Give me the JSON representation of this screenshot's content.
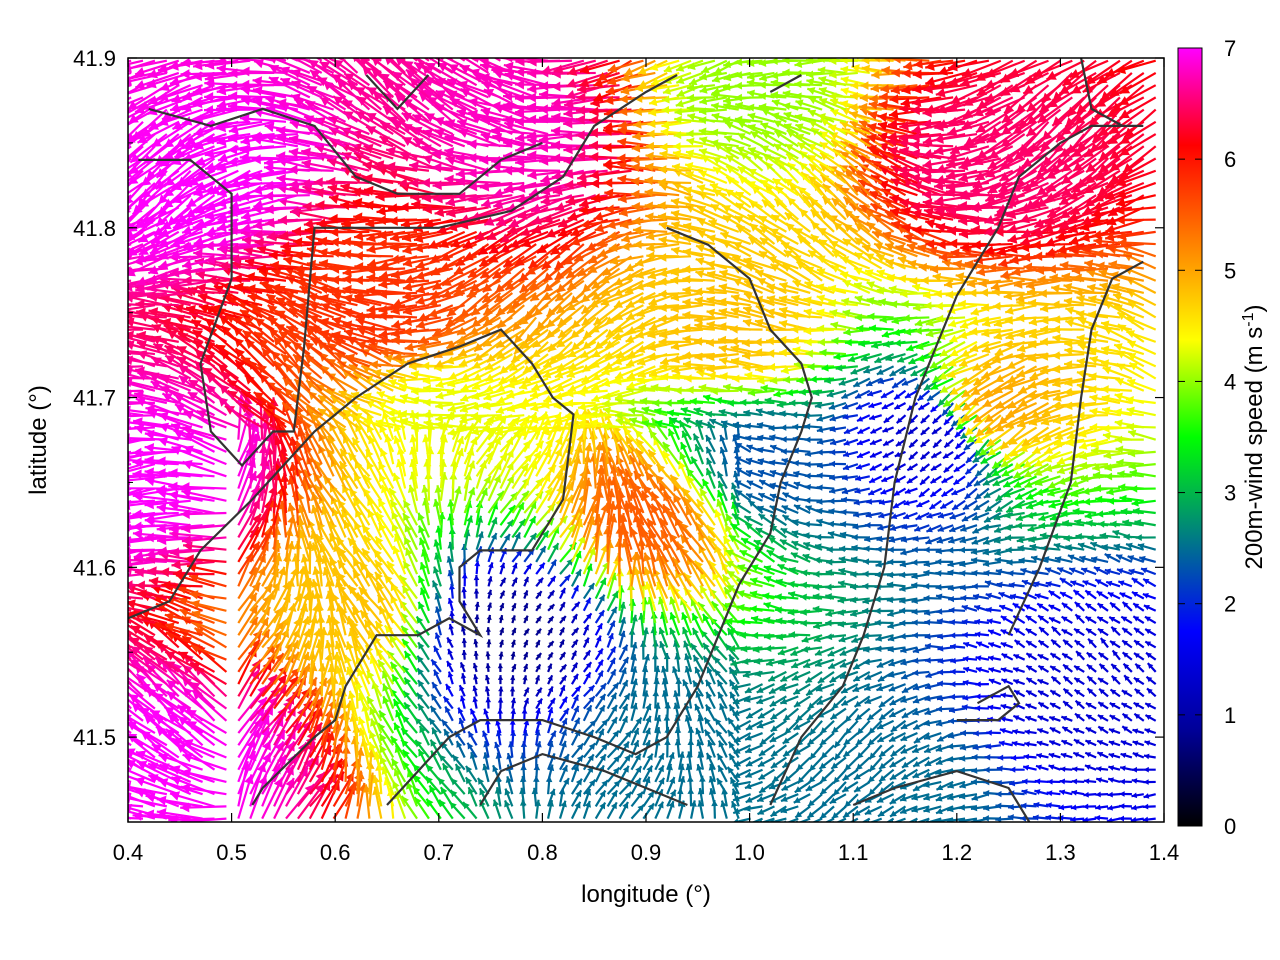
{
  "chart_data": {
    "type": "vector-field",
    "xlabel": "longitude (°)",
    "ylabel": "latitude (°)",
    "colorbar_label": "200m-wind speed (m s",
    "colorbar_label_sup": "-1",
    "colorbar_label_end": ")",
    "xlim": [
      0.4,
      1.4
    ],
    "ylim": [
      41.45,
      41.9
    ],
    "x_ticks": [
      {
        "value": 0.4,
        "label": "0.4"
      },
      {
        "value": 0.5,
        "label": "0.5"
      },
      {
        "value": 0.6,
        "label": "0.6"
      },
      {
        "value": 0.7,
        "label": "0.7"
      },
      {
        "value": 0.8,
        "label": "0.8"
      },
      {
        "value": 0.9,
        "label": "0.9"
      },
      {
        "value": 1.0,
        "label": "1.0"
      },
      {
        "value": 1.1,
        "label": "1.1"
      },
      {
        "value": 1.2,
        "label": "1.2"
      },
      {
        "value": 1.3,
        "label": "1.3"
      },
      {
        "value": 1.4,
        "label": "1.4"
      }
    ],
    "y_ticks": [
      {
        "value": 41.5,
        "label": "41.5"
      },
      {
        "value": 41.6,
        "label": "41.6"
      },
      {
        "value": 41.7,
        "label": "41.7"
      },
      {
        "value": 41.8,
        "label": "41.8"
      },
      {
        "value": 41.9,
        "label": "41.9"
      }
    ],
    "colorbar_range": [
      0,
      7
    ],
    "colorbar_ticks": [
      {
        "value": 0,
        "label": "0"
      },
      {
        "value": 1,
        "label": "1"
      },
      {
        "value": 2,
        "label": "2"
      },
      {
        "value": 3,
        "label": "3"
      },
      {
        "value": 4,
        "label": "4"
      },
      {
        "value": 5,
        "label": "5"
      },
      {
        "value": 6,
        "label": "6"
      },
      {
        "value": 7,
        "label": "7"
      }
    ],
    "colormap": [
      "#000000",
      "#00009a",
      "#0000ff",
      "#008080",
      "#00ff00",
      "#ffff00",
      "#ff8000",
      "#ff0000",
      "#ff00ff"
    ],
    "contour_color": "#333333",
    "speed_regions": [
      {
        "lon": 0.5,
        "lat": 41.83,
        "speed": 7.0
      },
      {
        "lon": 0.44,
        "lat": 41.65,
        "speed": 7.0
      },
      {
        "lon": 0.45,
        "lat": 41.48,
        "speed": 7.0
      },
      {
        "lon": 0.8,
        "lat": 41.86,
        "speed": 6.8
      },
      {
        "lon": 1.25,
        "lat": 41.84,
        "speed": 6.5
      },
      {
        "lon": 0.65,
        "lat": 41.75,
        "speed": 5.8
      },
      {
        "lon": 0.72,
        "lat": 41.69,
        "speed": 4.3
      },
      {
        "lon": 0.62,
        "lat": 41.57,
        "speed": 4.8
      },
      {
        "lon": 1.0,
        "lat": 41.74,
        "speed": 4.8
      },
      {
        "lon": 0.9,
        "lat": 41.62,
        "speed": 5.5
      },
      {
        "lon": 1.25,
        "lat": 41.7,
        "speed": 5.0
      },
      {
        "lon": 0.77,
        "lat": 41.56,
        "speed": 0.8
      },
      {
        "lon": 1.33,
        "lat": 41.52,
        "speed": 1.4
      },
      {
        "lon": 1.02,
        "lat": 41.66,
        "speed": 2.3
      },
      {
        "lon": 1.18,
        "lat": 41.68,
        "speed": 1.3
      },
      {
        "lon": 0.92,
        "lat": 41.5,
        "speed": 2.5
      },
      {
        "lon": 1.16,
        "lat": 41.47,
        "speed": 2.5
      },
      {
        "lon": 1.02,
        "lat": 41.88,
        "speed": 4.0
      }
    ],
    "contours": [
      [
        [
          0.41,
          41.84
        ],
        [
          0.46,
          41.84
        ],
        [
          0.5,
          41.82
        ],
        [
          0.5,
          41.77
        ],
        [
          0.47,
          41.72
        ],
        [
          0.48,
          41.68
        ],
        [
          0.51,
          41.66
        ],
        [
          0.54,
          41.68
        ],
        [
          0.56,
          41.68
        ],
        [
          0.57,
          41.73
        ],
        [
          0.58,
          41.8
        ],
        [
          0.62,
          41.8
        ],
        [
          0.7,
          41.8
        ],
        [
          0.77,
          41.81
        ],
        [
          0.82,
          41.83
        ],
        [
          0.85,
          41.86
        ],
        [
          0.9,
          41.88
        ],
        [
          0.93,
          41.89
        ]
      ],
      [
        [
          0.42,
          41.87
        ],
        [
          0.48,
          41.86
        ],
        [
          0.53,
          41.87
        ],
        [
          0.58,
          41.86
        ],
        [
          0.62,
          41.83
        ],
        [
          0.66,
          41.82
        ],
        [
          0.72,
          41.82
        ],
        [
          0.76,
          41.84
        ],
        [
          0.8,
          41.85
        ]
      ],
      [
        [
          0.4,
          41.57
        ],
        [
          0.44,
          41.58
        ],
        [
          0.47,
          41.61
        ],
        [
          0.52,
          41.64
        ],
        [
          0.58,
          41.68
        ],
        [
          0.62,
          41.7
        ],
        [
          0.67,
          41.72
        ],
        [
          0.72,
          41.73
        ],
        [
          0.76,
          41.74
        ],
        [
          0.79,
          41.72
        ],
        [
          0.81,
          41.7
        ],
        [
          0.83,
          41.69
        ],
        [
          0.82,
          41.64
        ],
        [
          0.79,
          41.61
        ],
        [
          0.74,
          41.61
        ],
        [
          0.72,
          41.6
        ],
        [
          0.72,
          41.58
        ],
        [
          0.74,
          41.56
        ],
        [
          0.71,
          41.57
        ],
        [
          0.68,
          41.56
        ],
        [
          0.64,
          41.56
        ],
        [
          0.61,
          41.53
        ],
        [
          0.6,
          41.51
        ],
        [
          0.58,
          41.5
        ],
        [
          0.53,
          41.47
        ],
        [
          0.52,
          41.46
        ]
      ],
      [
        [
          0.65,
          41.46
        ],
        [
          0.68,
          41.48
        ],
        [
          0.71,
          41.5
        ],
        [
          0.74,
          41.51
        ],
        [
          0.8,
          41.51
        ],
        [
          0.85,
          41.5
        ],
        [
          0.89,
          41.49
        ],
        [
          0.92,
          41.5
        ],
        [
          0.95,
          41.53
        ],
        [
          0.97,
          41.56
        ],
        [
          0.99,
          41.59
        ],
        [
          1.02,
          41.62
        ],
        [
          1.03,
          41.65
        ],
        [
          1.05,
          41.68
        ],
        [
          1.06,
          41.7
        ],
        [
          1.05,
          41.72
        ],
        [
          1.02,
          41.74
        ],
        [
          1.0,
          41.77
        ],
        [
          0.96,
          41.79
        ],
        [
          0.92,
          41.8
        ]
      ],
      [
        [
          1.02,
          41.46
        ],
        [
          1.05,
          41.5
        ],
        [
          1.09,
          41.53
        ],
        [
          1.11,
          41.56
        ],
        [
          1.13,
          41.6
        ],
        [
          1.14,
          41.65
        ],
        [
          1.16,
          41.7
        ],
        [
          1.18,
          41.73
        ],
        [
          1.2,
          41.76
        ],
        [
          1.22,
          41.78
        ],
        [
          1.24,
          41.8
        ],
        [
          1.26,
          41.83
        ],
        [
          1.3,
          41.85
        ],
        [
          1.33,
          41.86
        ],
        [
          1.38,
          41.86
        ]
      ],
      [
        [
          0.74,
          41.46
        ],
        [
          0.76,
          41.48
        ],
        [
          0.8,
          41.49
        ],
        [
          0.86,
          41.48
        ],
        [
          0.9,
          41.47
        ],
        [
          0.94,
          41.46
        ]
      ],
      [
        [
          1.1,
          41.46
        ],
        [
          1.14,
          41.47
        ],
        [
          1.2,
          41.48
        ],
        [
          1.25,
          41.47
        ],
        [
          1.27,
          41.45
        ]
      ],
      [
        [
          1.2,
          41.51
        ],
        [
          1.24,
          41.51
        ],
        [
          1.26,
          41.52
        ],
        [
          1.25,
          41.53
        ],
        [
          1.22,
          41.52
        ]
      ],
      [
        [
          1.25,
          41.56
        ],
        [
          1.28,
          41.6
        ],
        [
          1.31,
          41.65
        ],
        [
          1.32,
          41.7
        ],
        [
          1.33,
          41.74
        ],
        [
          1.35,
          41.77
        ],
        [
          1.38,
          41.78
        ]
      ],
      [
        [
          0.63,
          41.89
        ],
        [
          0.66,
          41.87
        ],
        [
          0.69,
          41.89
        ]
      ],
      [
        [
          1.02,
          41.88
        ],
        [
          1.05,
          41.89
        ]
      ],
      [
        [
          1.32,
          41.9
        ],
        [
          1.33,
          41.87
        ],
        [
          1.36,
          41.86
        ]
      ]
    ]
  }
}
